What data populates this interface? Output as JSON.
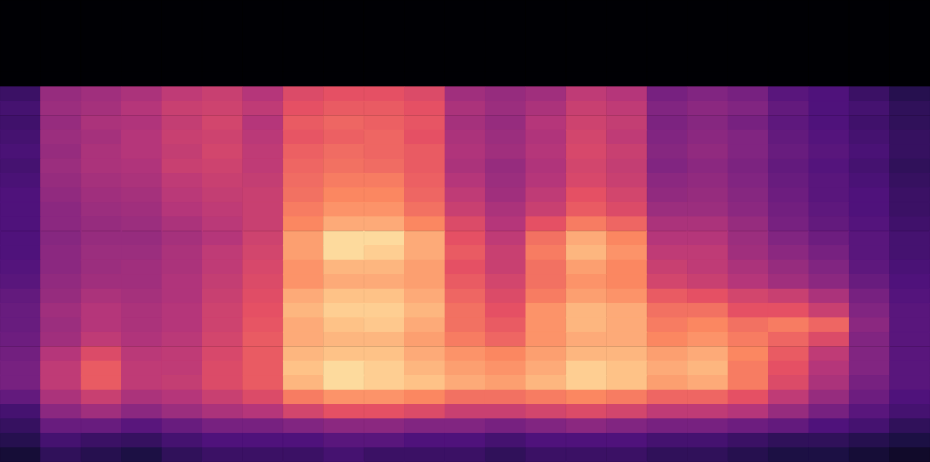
{
  "chart_data": {
    "type": "heatmap",
    "tick_labels": false,
    "color_range": [
      -80,
      0
    ],
    "cells": [
      [
        -80,
        -80,
        -80,
        -80,
        -80,
        -80,
        -80,
        -80,
        -80,
        -80,
        -80,
        -80,
        -80,
        -80,
        -80,
        -80,
        -80,
        -80,
        -80,
        -80,
        -80,
        -80,
        -80
      ],
      [
        -80,
        -80,
        -80,
        -80,
        -80,
        -80,
        -80,
        -80,
        -80,
        -80,
        -80,
        -80,
        -80,
        -80,
        -80,
        -80,
        -80,
        -80,
        -80,
        -80,
        -80,
        -80,
        -80
      ],
      [
        -80,
        -80,
        -80,
        -80,
        -80,
        -80,
        -80,
        -80,
        -80,
        -80,
        -80,
        -80,
        -80,
        -80,
        -80,
        -80,
        -80,
        -80,
        -80,
        -80,
        -80,
        -80,
        -80
      ],
      [
        -80,
        -80,
        -80,
        -80,
        -80,
        -80,
        -80,
        -80,
        -80,
        -80,
        -80,
        -80,
        -80,
        -80,
        -80,
        -80,
        -80,
        -80,
        -80,
        -80,
        -80,
        -80,
        -80
      ],
      [
        -80,
        -80,
        -80,
        -80,
        -80,
        -80,
        -80,
        -80,
        -80,
        -80,
        -80,
        -80,
        -80,
        -80,
        -80,
        -80,
        -80,
        -80,
        -80,
        -80,
        -80,
        -80,
        -80
      ],
      [
        -80,
        -80,
        -80,
        -80,
        -80,
        -80,
        -80,
        -80,
        -80,
        -80,
        -80,
        -80,
        -80,
        -80,
        -80,
        -80,
        -80,
        -80,
        -80,
        -80,
        -80,
        -80,
        -80
      ],
      [
        -64,
        -46,
        -44,
        -42,
        -38,
        -36,
        -40,
        -32,
        -30,
        -30,
        -32,
        -44,
        -46,
        -44,
        -38,
        -40,
        -52,
        -50,
        -52,
        -58,
        -60,
        -64,
        -68
      ],
      [
        -62,
        -45,
        -43,
        -40,
        -36,
        -35,
        -38,
        -30,
        -28,
        -28,
        -30,
        -42,
        -45,
        -42,
        -36,
        -38,
        -50,
        -48,
        -50,
        -56,
        -60,
        -62,
        -66
      ],
      [
        -63,
        -46,
        -42,
        -41,
        -37,
        -34,
        -40,
        -28,
        -26,
        -27,
        -29,
        -43,
        -46,
        -40,
        -35,
        -37,
        -51,
        -49,
        -52,
        -57,
        -60,
        -63,
        -66
      ],
      [
        -62,
        -45,
        -43,
        -40,
        -36,
        -35,
        -39,
        -29,
        -27,
        -26,
        -30,
        -42,
        -45,
        -41,
        -34,
        -38,
        -50,
        -48,
        -50,
        -56,
        -59,
        -62,
        -65
      ],
      [
        -61,
        -46,
        -42,
        -40,
        -37,
        -34,
        -38,
        -27,
        -25,
        -26,
        -28,
        -41,
        -44,
        -40,
        -33,
        -36,
        -49,
        -47,
        -50,
        -55,
        -58,
        -61,
        -65
      ],
      [
        -62,
        -45,
        -42,
        -41,
        -36,
        -35,
        -38,
        -26,
        -24,
        -25,
        -28,
        -42,
        -46,
        -41,
        -34,
        -37,
        -50,
        -48,
        -51,
        -56,
        -59,
        -62,
        -66
      ],
      [
        -61,
        -46,
        -43,
        -42,
        -38,
        -36,
        -37,
        -25,
        -22,
        -22,
        -27,
        -40,
        -45,
        -40,
        -33,
        -36,
        -48,
        -47,
        -50,
        -55,
        -58,
        -61,
        -65
      ],
      [
        -60,
        -47,
        -44,
        -43,
        -39,
        -37,
        -36,
        -24,
        -20,
        -20,
        -26,
        -38,
        -44,
        -38,
        -30,
        -34,
        -47,
        -46,
        -49,
        -54,
        -58,
        -60,
        -64
      ],
      [
        -60,
        -48,
        -45,
        -44,
        -40,
        -38,
        -36,
        -22,
        -18,
        -18,
        -24,
        -36,
        -42,
        -36,
        -28,
        -32,
        -45,
        -45,
        -48,
        -53,
        -57,
        -60,
        -64
      ],
      [
        -60,
        -48,
        -46,
        -45,
        -42,
        -39,
        -36,
        -20,
        -14,
        -14,
        -20,
        -32,
        -40,
        -30,
        -22,
        -26,
        -42,
        -42,
        -46,
        -52,
        -56,
        -59,
        -63
      ],
      [
        -60,
        -49,
        -46,
        -46,
        -43,
        -40,
        -35,
        -16,
        -6,
        -6,
        -14,
        -30,
        -38,
        -24,
        -14,
        -20,
        -40,
        -40,
        -45,
        -50,
        -54,
        -58,
        -62
      ],
      [
        -60,
        -48,
        -45,
        -45,
        -42,
        -38,
        -34,
        -16,
        -6,
        -8,
        -14,
        -28,
        -36,
        -22,
        -12,
        -18,
        -38,
        -38,
        -44,
        -48,
        -52,
        -58,
        -62
      ],
      [
        -59,
        -48,
        -45,
        -44,
        -42,
        -38,
        -33,
        -18,
        -12,
        -12,
        -16,
        -30,
        -36,
        -24,
        -16,
        -20,
        -36,
        -38,
        -42,
        -46,
        -50,
        -57,
        -61
      ],
      [
        -58,
        -47,
        -44,
        -44,
        -41,
        -37,
        -32,
        -18,
        -14,
        -14,
        -16,
        -28,
        -34,
        -24,
        -18,
        -20,
        -34,
        -36,
        -40,
        -44,
        -48,
        -55,
        -60
      ],
      [
        -56,
        -46,
        -42,
        -43,
        -41,
        -36,
        -31,
        -14,
        -10,
        -10,
        -14,
        -26,
        -32,
        -22,
        -16,
        -18,
        -28,
        -30,
        -34,
        -36,
        -42,
        -52,
        -59
      ],
      [
        -55,
        -44,
        -40,
        -42,
        -40,
        -35,
        -30,
        -12,
        -8,
        -8,
        -12,
        -24,
        -30,
        -18,
        -12,
        -14,
        -24,
        -24,
        -30,
        -30,
        -36,
        -50,
        -58
      ],
      [
        -55,
        -45,
        -40,
        -42,
        -40,
        -35,
        -29,
        -14,
        -10,
        -9,
        -14,
        -24,
        -28,
        -18,
        -12,
        -14,
        -22,
        -20,
        -24,
        -22,
        -26,
        -48,
        -58
      ],
      [
        -54,
        -44,
        -38,
        -41,
        -39,
        -34,
        -28,
        -14,
        -12,
        -12,
        -16,
        -22,
        -26,
        -18,
        -14,
        -14,
        -20,
        -18,
        -22,
        -26,
        -32,
        -50,
        -58
      ],
      [
        -53,
        -40,
        -32,
        -39,
        -38,
        -33,
        -28,
        -12,
        -10,
        -10,
        -14,
        -18,
        -20,
        -16,
        -12,
        -12,
        -16,
        -14,
        -20,
        -28,
        -38,
        -50,
        -58
      ],
      [
        -52,
        -38,
        -28,
        -38,
        -38,
        -32,
        -28,
        -10,
        -6,
        -8,
        -12,
        -16,
        -18,
        -14,
        -8,
        -10,
        -14,
        -12,
        -22,
        -30,
        -40,
        -50,
        -58
      ],
      [
        -52,
        -38,
        -28,
        -38,
        -37,
        -32,
        -28,
        -12,
        -6,
        -8,
        -10,
        -14,
        -16,
        -12,
        -8,
        -10,
        -16,
        -14,
        -22,
        -32,
        -42,
        -52,
        -58
      ],
      [
        -56,
        -42,
        -36,
        -42,
        -40,
        -36,
        -32,
        -22,
        -18,
        -18,
        -20,
        -24,
        -24,
        -22,
        -20,
        -22,
        -26,
        -26,
        -30,
        -38,
        -46,
        -54,
        -60
      ],
      [
        -62,
        -48,
        -44,
        -48,
        -45,
        -42,
        -40,
        -34,
        -30,
        -30,
        -32,
        -36,
        -36,
        -34,
        -32,
        -34,
        -38,
        -38,
        -40,
        -46,
        -52,
        -58,
        -62
      ],
      [
        -65,
        -55,
        -55,
        -58,
        -55,
        -52,
        -52,
        -50,
        -48,
        -48,
        -50,
        -50,
        -52,
        -50,
        -48,
        -50,
        -52,
        -52,
        -54,
        -56,
        -60,
        -62,
        -66
      ],
      [
        -68,
        -62,
        -64,
        -65,
        -62,
        -60,
        -60,
        -60,
        -58,
        -58,
        -60,
        -60,
        -62,
        -60,
        -60,
        -60,
        -62,
        -62,
        -64,
        -66,
        -66,
        -68,
        -70
      ],
      [
        -72,
        -66,
        -68,
        -70,
        -66,
        -64,
        -64,
        -64,
        -62,
        -64,
        -64,
        -64,
        -66,
        -64,
        -64,
        -64,
        -66,
        -66,
        -68,
        -70,
        -70,
        -72,
        -74
      ]
    ]
  }
}
